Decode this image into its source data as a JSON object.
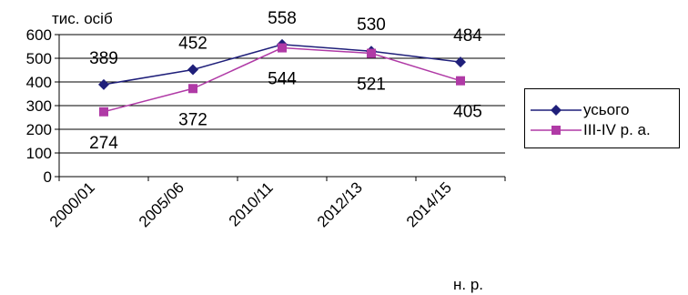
{
  "chart_data": {
    "type": "line",
    "ylabel": "тис. осіб",
    "xlabel": "н. р.",
    "categories": [
      "2000/01",
      "2005/06",
      "2010/11",
      "2012/13",
      "2014/15"
    ],
    "ylim": [
      0,
      600
    ],
    "yticks": [
      0,
      100,
      200,
      300,
      400,
      500,
      600
    ],
    "grid": true,
    "legend_position": "right",
    "series": [
      {
        "name": "усього",
        "values": [
          389,
          452,
          558,
          530,
          484
        ],
        "color": "#1f1f7a",
        "marker": "diamond",
        "labels": [
          "389",
          "452",
          "558",
          "530",
          "484"
        ]
      },
      {
        "name": "III-IV р. а.",
        "values": [
          274,
          372,
          544,
          521,
          405
        ],
        "color": "#b03aa6",
        "marker": "square",
        "labels": [
          "274",
          "372",
          "544",
          "521",
          "405"
        ]
      }
    ]
  }
}
